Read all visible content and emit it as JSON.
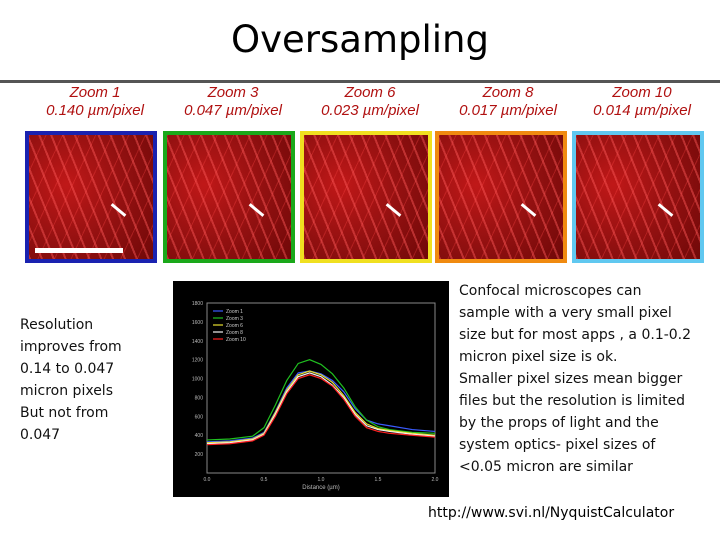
{
  "title": "Oversampling",
  "panels": [
    {
      "zoom": "Zoom 1",
      "pixel": "0.140 µm/pixel",
      "border": "#1a22b0"
    },
    {
      "zoom": "Zoom 3",
      "pixel": "0.047 µm/pixel",
      "border": "#1aa81a"
    },
    {
      "zoom": "Zoom 6",
      "pixel": "0.023 µm/pixel",
      "border": "#f0e020"
    },
    {
      "zoom": "Zoom 8",
      "pixel": "0.017 µm/pixel",
      "border": "#f08a10"
    },
    {
      "zoom": "Zoom 10",
      "pixel": "0.014 µm/pixel",
      "border": "#60c8f0"
    }
  ],
  "left_text": [
    "Resolution",
    "improves from",
    "0.14 to 0.047",
    "micron pixels",
    "But not from",
    "0.047"
  ],
  "right_text": [
    "Confocal microscopes can",
    "sample with a very small pixel",
    "size but for most apps , a 0.1-0.2",
    "micron pixel size is ok.",
    "Smaller pixel sizes mean bigger",
    "files but the resolution is limited",
    "by the props of light and the",
    "system optics- pixel sizes of",
    "<0.05 micron are similar"
  ],
  "url": "http://www.svi.nl/NyquistCalculator",
  "chart_data": {
    "type": "line",
    "xlabel": "Distance (µm)",
    "ylabel": "",
    "xlim": [
      0,
      2.0
    ],
    "ylim": [
      0,
      1800
    ],
    "x_ticks": [
      "0.0",
      "0.5",
      "1.0",
      "1.5",
      "2.0"
    ],
    "y_ticks": [
      "200",
      "400",
      "600",
      "800",
      "1000",
      "1200",
      "1400",
      "1600",
      "1800"
    ],
    "legend_position": "top-left",
    "x": [
      0.0,
      0.2,
      0.4,
      0.5,
      0.6,
      0.7,
      0.8,
      0.9,
      1.0,
      1.1,
      1.2,
      1.3,
      1.4,
      1.5,
      1.6,
      1.8,
      2.0
    ],
    "series": [
      {
        "name": "Zoom 1",
        "color": "#3a5cff",
        "values": [
          330,
          340,
          370,
          430,
          650,
          900,
          1060,
          1080,
          1050,
          980,
          860,
          680,
          560,
          520,
          500,
          460,
          440
        ]
      },
      {
        "name": "Zoom 3",
        "color": "#20c020",
        "values": [
          350,
          360,
          390,
          480,
          720,
          980,
          1160,
          1200,
          1150,
          1050,
          900,
          700,
          560,
          490,
          460,
          430,
          420
        ]
      },
      {
        "name": "Zoom 6",
        "color": "#e8e030",
        "values": [
          320,
          330,
          360,
          420,
          640,
          880,
          1040,
          1080,
          1040,
          960,
          820,
          640,
          520,
          470,
          450,
          420,
          400
        ]
      },
      {
        "name": "Zoom 8",
        "color": "#f0f0f0",
        "values": [
          310,
          320,
          350,
          410,
          620,
          860,
          1020,
          1060,
          1020,
          930,
          800,
          620,
          500,
          460,
          440,
          410,
          390
        ]
      },
      {
        "name": "Zoom 10",
        "color": "#ff2020",
        "values": [
          300,
          310,
          340,
          400,
          600,
          840,
          1000,
          1040,
          1000,
          920,
          780,
          600,
          480,
          440,
          420,
          400,
          380
        ]
      }
    ]
  }
}
